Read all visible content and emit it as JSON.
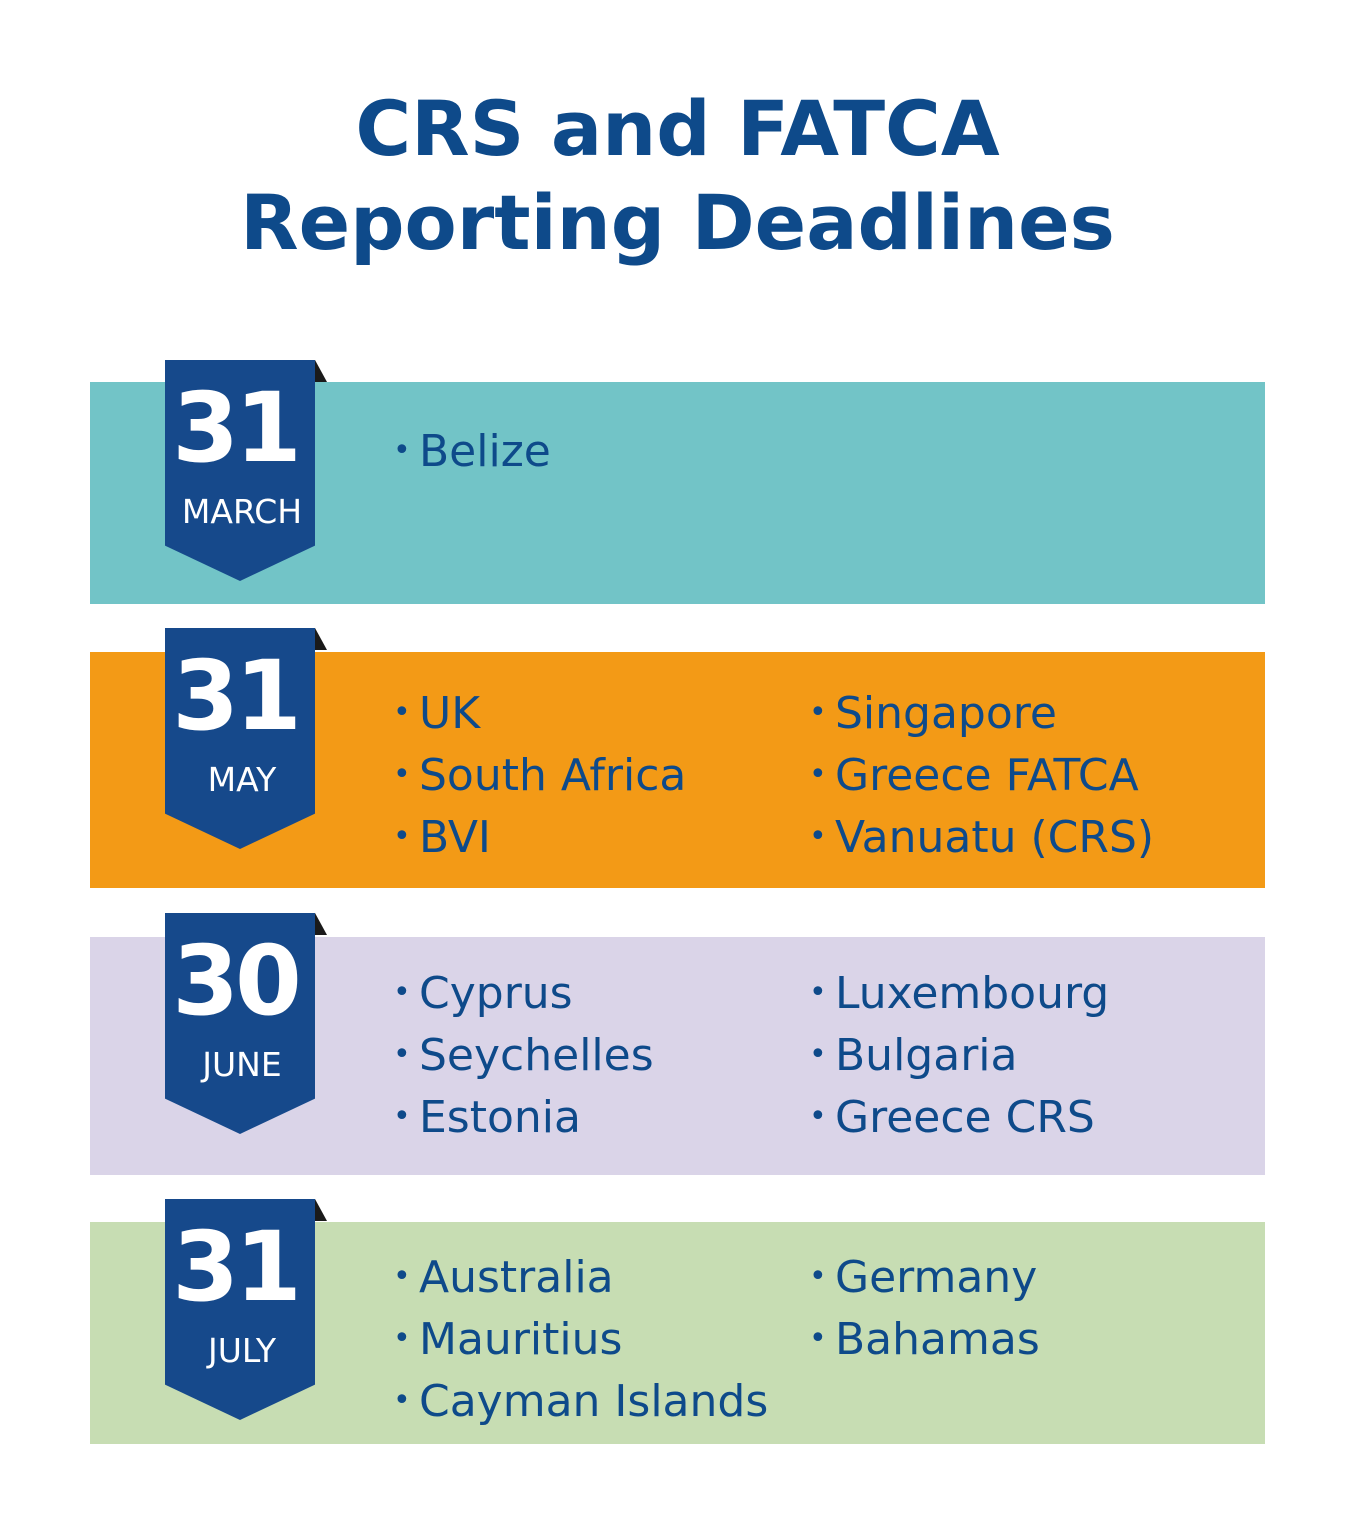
{
  "title": {
    "line1": "CRS and FATCA",
    "line2": "Reporting Deadlines"
  },
  "colors": {
    "title": "#0e4a8a",
    "ribbon": "#16498b",
    "text": "#0e4a8a",
    "band_march": "#72c4c7",
    "band_may": "#f39a16",
    "band_june": "#dad4e8",
    "band_july": "#c7ddb3"
  },
  "deadlines": [
    {
      "day": "31",
      "month": "MARCH",
      "left": [
        "Belize"
      ],
      "right": []
    },
    {
      "day": "31",
      "month": "MAY",
      "left": [
        "UK",
        "South Africa",
        "BVI"
      ],
      "right": [
        "Singapore",
        "Greece FATCA",
        "Vanuatu (CRS)"
      ]
    },
    {
      "day": "30",
      "month": "JUNE",
      "left": [
        "Cyprus",
        "Seychelles",
        "Estonia"
      ],
      "right": [
        "Luxembourg",
        "Bulgaria",
        "Greece CRS"
      ]
    },
    {
      "day": "31",
      "month": "JULY",
      "left": [
        "Australia",
        "Mauritius",
        "Cayman Islands"
      ],
      "right": [
        "Germany",
        "Bahamas"
      ]
    }
  ]
}
